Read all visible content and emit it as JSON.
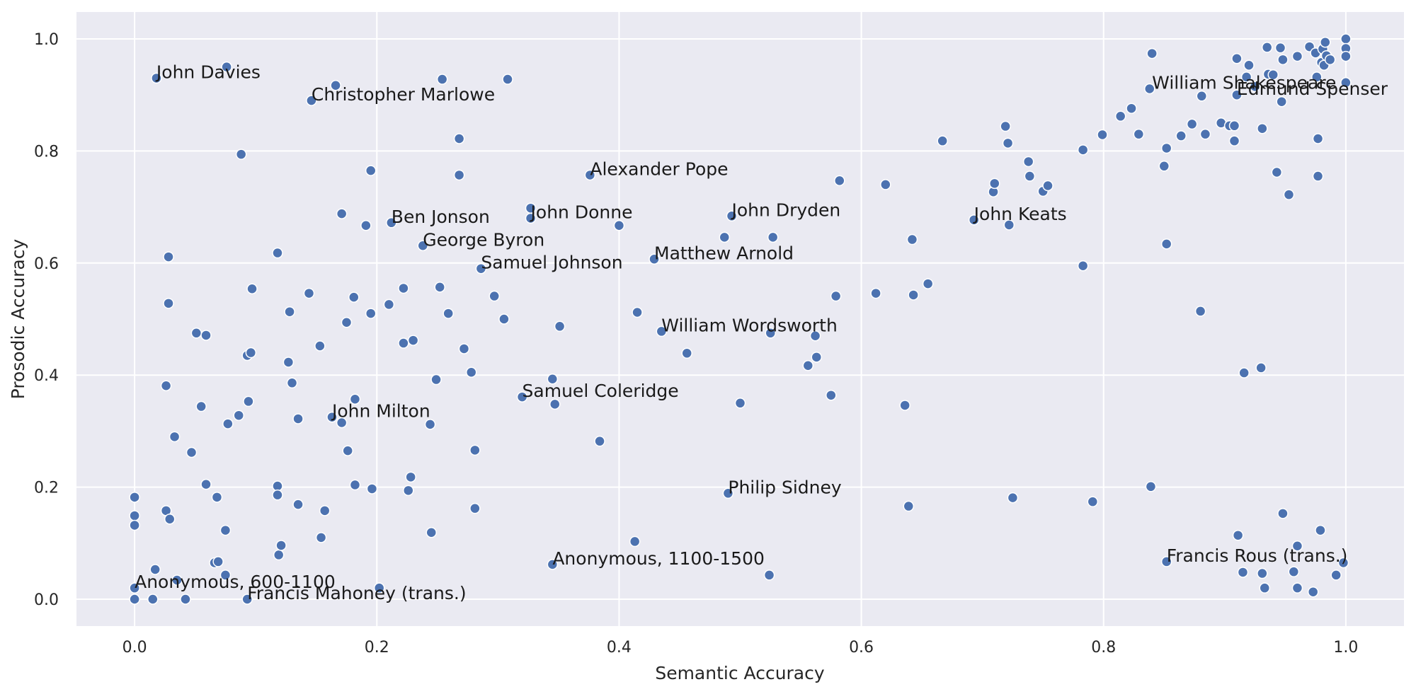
{
  "chart_data": {
    "type": "scatter",
    "xlabel": "Semantic Accuracy",
    "ylabel": "Prosodic Accuracy",
    "xlim": [
      -0.048,
      1.048
    ],
    "ylim": [
      -0.048,
      1.048
    ],
    "x_ticks": [
      "0.0",
      "0.2",
      "0.4",
      "0.6",
      "0.8",
      "1.0"
    ],
    "y_ticks": [
      "0.0",
      "0.2",
      "0.4",
      "0.6",
      "0.8",
      "1.0"
    ],
    "grid": true,
    "color": "#4c72b0",
    "background": "#eaeaf2",
    "annotations": [
      {
        "label": "John Davies",
        "x": 0.018,
        "y": 0.93
      },
      {
        "label": "Christopher Marlowe",
        "x": 0.146,
        "y": 0.89
      },
      {
        "label": "Alexander Pope",
        "x": 0.376,
        "y": 0.757
      },
      {
        "label": "Ben Jonson",
        "x": 0.212,
        "y": 0.672
      },
      {
        "label": "John Donne",
        "x": 0.327,
        "y": 0.68
      },
      {
        "label": "John Dryden",
        "x": 0.493,
        "y": 0.684
      },
      {
        "label": "John Keats",
        "x": 0.693,
        "y": 0.677
      },
      {
        "label": "George Byron",
        "x": 0.238,
        "y": 0.631
      },
      {
        "label": "Samuel Johnson",
        "x": 0.286,
        "y": 0.59
      },
      {
        "label": "Matthew Arnold",
        "x": 0.429,
        "y": 0.607
      },
      {
        "label": "William Wordsworth",
        "x": 0.435,
        "y": 0.478
      },
      {
        "label": "Samuel Coleridge",
        "x": 0.32,
        "y": 0.361
      },
      {
        "label": "John Milton",
        "x": 0.163,
        "y": 0.325
      },
      {
        "label": "Philip Sidney",
        "x": 0.49,
        "y": 0.189
      },
      {
        "label": "Anonymous, 1100-1500",
        "x": 0.345,
        "y": 0.062
      },
      {
        "label": "Anonymous, 600-1100",
        "x": 0.0,
        "y": 0.02
      },
      {
        "label": "Francis Mahoney (trans.)",
        "x": 0.093,
        "y": 0.0
      },
      {
        "label": "William Shakespeare",
        "x": 0.84,
        "y": 0.911
      },
      {
        "label": "Edmund Spenser",
        "x": 0.91,
        "y": 0.9
      },
      {
        "label": "Francis Rous (trans.)",
        "x": 0.852,
        "y": 0.067
      }
    ],
    "points": [
      [
        0.018,
        0.93
      ],
      [
        0.076,
        0.95
      ],
      [
        0.146,
        0.89
      ],
      [
        0.166,
        0.917
      ],
      [
        0.254,
        0.928
      ],
      [
        0.308,
        0.928
      ],
      [
        0.088,
        0.794
      ],
      [
        0.195,
        0.765
      ],
      [
        0.268,
        0.822
      ],
      [
        0.268,
        0.757
      ],
      [
        0.376,
        0.757
      ],
      [
        0.171,
        0.688
      ],
      [
        0.191,
        0.667
      ],
      [
        0.212,
        0.672
      ],
      [
        0.238,
        0.631
      ],
      [
        0.327,
        0.698
      ],
      [
        0.327,
        0.68
      ],
      [
        0.4,
        0.667
      ],
      [
        0.493,
        0.684
      ],
      [
        0.487,
        0.646
      ],
      [
        0.527,
        0.646
      ],
      [
        0.429,
        0.607
      ],
      [
        0.286,
        0.59
      ],
      [
        0.118,
        0.618
      ],
      [
        0.028,
        0.611
      ],
      [
        0.028,
        0.528
      ],
      [
        0.097,
        0.554
      ],
      [
        0.144,
        0.546
      ],
      [
        0.181,
        0.539
      ],
      [
        0.222,
        0.555
      ],
      [
        0.252,
        0.557
      ],
      [
        0.128,
        0.513
      ],
      [
        0.175,
        0.494
      ],
      [
        0.195,
        0.51
      ],
      [
        0.21,
        0.526
      ],
      [
        0.259,
        0.51
      ],
      [
        0.297,
        0.541
      ],
      [
        0.305,
        0.5
      ],
      [
        0.351,
        0.487
      ],
      [
        0.415,
        0.512
      ],
      [
        0.435,
        0.478
      ],
      [
        0.051,
        0.475
      ],
      [
        0.059,
        0.471
      ],
      [
        0.093,
        0.435
      ],
      [
        0.096,
        0.44
      ],
      [
        0.153,
        0.452
      ],
      [
        0.127,
        0.423
      ],
      [
        0.222,
        0.457
      ],
      [
        0.23,
        0.462
      ],
      [
        0.272,
        0.447
      ],
      [
        0.278,
        0.405
      ],
      [
        0.249,
        0.392
      ],
      [
        0.345,
        0.393
      ],
      [
        0.026,
        0.381
      ],
      [
        0.13,
        0.386
      ],
      [
        0.055,
        0.344
      ],
      [
        0.094,
        0.353
      ],
      [
        0.086,
        0.328
      ],
      [
        0.077,
        0.313
      ],
      [
        0.135,
        0.322
      ],
      [
        0.163,
        0.325
      ],
      [
        0.171,
        0.315
      ],
      [
        0.182,
        0.357
      ],
      [
        0.244,
        0.312
      ],
      [
        0.32,
        0.361
      ],
      [
        0.347,
        0.348
      ],
      [
        0.033,
        0.29
      ],
      [
        0.047,
        0.262
      ],
      [
        0.176,
        0.265
      ],
      [
        0.281,
        0.266
      ],
      [
        0.384,
        0.282
      ],
      [
        0.059,
        0.205
      ],
      [
        0.068,
        0.182
      ],
      [
        0.118,
        0.202
      ],
      [
        0.118,
        0.186
      ],
      [
        0.182,
        0.204
      ],
      [
        0.196,
        0.197
      ],
      [
        0.226,
        0.194
      ],
      [
        0.228,
        0.218
      ],
      [
        0.0,
        0.182
      ],
      [
        0.0,
        0.149
      ],
      [
        0.0,
        0.132
      ],
      [
        0.026,
        0.158
      ],
      [
        0.029,
        0.143
      ],
      [
        0.075,
        0.123
      ],
      [
        0.135,
        0.169
      ],
      [
        0.157,
        0.158
      ],
      [
        0.154,
        0.11
      ],
      [
        0.119,
        0.079
      ],
      [
        0.121,
        0.096
      ],
      [
        0.245,
        0.119
      ],
      [
        0.281,
        0.162
      ],
      [
        0.066,
        0.065
      ],
      [
        0.069,
        0.067
      ],
      [
        0.017,
        0.053
      ],
      [
        0.075,
        0.043
      ],
      [
        0.035,
        0.034
      ],
      [
        0.0,
        0.02
      ],
      [
        0.0,
        0.0
      ],
      [
        0.015,
        0.0
      ],
      [
        0.042,
        0.0
      ],
      [
        0.093,
        0.0
      ],
      [
        0.202,
        0.02
      ],
      [
        0.345,
        0.062
      ],
      [
        0.413,
        0.103
      ],
      [
        0.524,
        0.043
      ],
      [
        0.49,
        0.189
      ],
      [
        0.5,
        0.35
      ],
      [
        0.456,
        0.439
      ],
      [
        0.525,
        0.475
      ],
      [
        0.556,
        0.417
      ],
      [
        0.563,
        0.432
      ],
      [
        0.562,
        0.47
      ],
      [
        0.575,
        0.364
      ],
      [
        0.579,
        0.541
      ],
      [
        0.582,
        0.747
      ],
      [
        0.612,
        0.546
      ],
      [
        0.62,
        0.74
      ],
      [
        0.636,
        0.346
      ],
      [
        0.639,
        0.166
      ],
      [
        0.642,
        0.642
      ],
      [
        0.643,
        0.543
      ],
      [
        0.655,
        0.563
      ],
      [
        0.667,
        0.818
      ],
      [
        0.693,
        0.677
      ],
      [
        0.709,
        0.727
      ],
      [
        0.71,
        0.742
      ],
      [
        0.719,
        0.844
      ],
      [
        0.721,
        0.814
      ],
      [
        0.722,
        0.668
      ],
      [
        0.725,
        0.181
      ],
      [
        0.738,
        0.781
      ],
      [
        0.739,
        0.755
      ],
      [
        0.75,
        0.728
      ],
      [
        0.754,
        0.738
      ],
      [
        0.783,
        0.802
      ],
      [
        0.783,
        0.595
      ],
      [
        0.791,
        0.174
      ],
      [
        0.799,
        0.829
      ],
      [
        0.814,
        0.862
      ],
      [
        0.823,
        0.876
      ],
      [
        0.829,
        0.83
      ],
      [
        0.838,
        0.911
      ],
      [
        0.84,
        0.974
      ],
      [
        0.839,
        0.201
      ],
      [
        0.85,
        0.773
      ],
      [
        0.852,
        0.805
      ],
      [
        0.852,
        0.634
      ],
      [
        0.852,
        0.067
      ],
      [
        0.864,
        0.827
      ],
      [
        0.873,
        0.848
      ],
      [
        0.881,
        0.898
      ],
      [
        0.88,
        0.514
      ],
      [
        0.884,
        0.83
      ],
      [
        0.897,
        0.85
      ],
      [
        0.904,
        0.845
      ],
      [
        0.908,
        0.845
      ],
      [
        0.908,
        0.818
      ],
      [
        0.91,
        0.9
      ],
      [
        0.91,
        0.965
      ],
      [
        0.911,
        0.114
      ],
      [
        0.915,
        0.048
      ],
      [
        0.916,
        0.404
      ],
      [
        0.918,
        0.932
      ],
      [
        0.92,
        0.953
      ],
      [
        0.925,
        0.915
      ],
      [
        0.93,
        0.413
      ],
      [
        0.931,
        0.84
      ],
      [
        0.931,
        0.046
      ],
      [
        0.933,
        0.02
      ],
      [
        0.935,
        0.985
      ],
      [
        0.936,
        0.937
      ],
      [
        0.94,
        0.936
      ],
      [
        0.943,
        0.762
      ],
      [
        0.946,
        0.984
      ],
      [
        0.947,
        0.888
      ],
      [
        0.948,
        0.963
      ],
      [
        0.948,
        0.153
      ],
      [
        0.953,
        0.722
      ],
      [
        0.957,
        0.049
      ],
      [
        0.96,
        0.969
      ],
      [
        0.96,
        0.095
      ],
      [
        0.96,
        0.02
      ],
      [
        0.97,
        0.986
      ],
      [
        0.973,
        0.013
      ],
      [
        0.975,
        0.975
      ],
      [
        0.976,
        0.932
      ],
      [
        0.977,
        0.822
      ],
      [
        0.977,
        0.755
      ],
      [
        0.979,
        0.123
      ],
      [
        0.98,
        0.958
      ],
      [
        0.981,
        0.982
      ],
      [
        0.982,
        0.953
      ],
      [
        0.983,
        0.994
      ],
      [
        0.984,
        0.97
      ],
      [
        0.987,
        0.963
      ],
      [
        0.992,
        0.043
      ],
      [
        1.0,
        1.0
      ],
      [
        1.0,
        0.983
      ],
      [
        1.0,
        0.969
      ],
      [
        1.0,
        0.922
      ],
      [
        0.998,
        0.065
      ]
    ]
  }
}
